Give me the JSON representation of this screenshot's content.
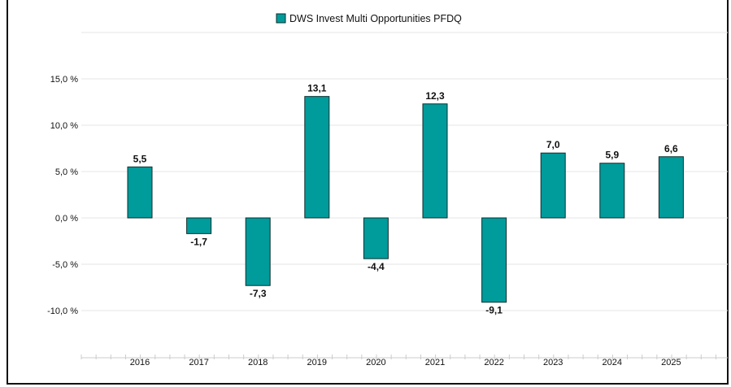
{
  "chart_data": {
    "type": "bar",
    "legend": {
      "position": "top-center",
      "entries": [
        {
          "label": "DWS Invest Multi Opportunities PFDQ",
          "color": "#009b9b"
        }
      ]
    },
    "categories": [
      "2016",
      "2017",
      "2018",
      "2019",
      "2020",
      "2021",
      "2022",
      "2023",
      "2024",
      "2025"
    ],
    "series": [
      {
        "name": "DWS Invest Multi Opportunities PFDQ",
        "color": "#009b9b",
        "values": [
          5.5,
          -1.7,
          -7.3,
          13.1,
          -4.4,
          12.3,
          -9.1,
          7.0,
          5.9,
          6.6
        ],
        "labels": [
          "5,5",
          "-1,7",
          "-7,3",
          "13,1",
          "-4,4",
          "12,3",
          "-9,1",
          "7,0",
          "5,9",
          "6,6"
        ]
      }
    ],
    "y_ticks": [
      {
        "value": 15,
        "label": "15,0 %"
      },
      {
        "value": 10,
        "label": "10,0 %"
      },
      {
        "value": 5,
        "label": "5,0 %"
      },
      {
        "value": 0,
        "label": "0,0 %"
      },
      {
        "value": -5,
        "label": "-5,0 %"
      },
      {
        "value": -10,
        "label": "-10,0 %"
      }
    ],
    "ylim": [
      -15,
      20
    ],
    "grid": true,
    "title": "",
    "xlabel": "",
    "ylabel": ""
  }
}
